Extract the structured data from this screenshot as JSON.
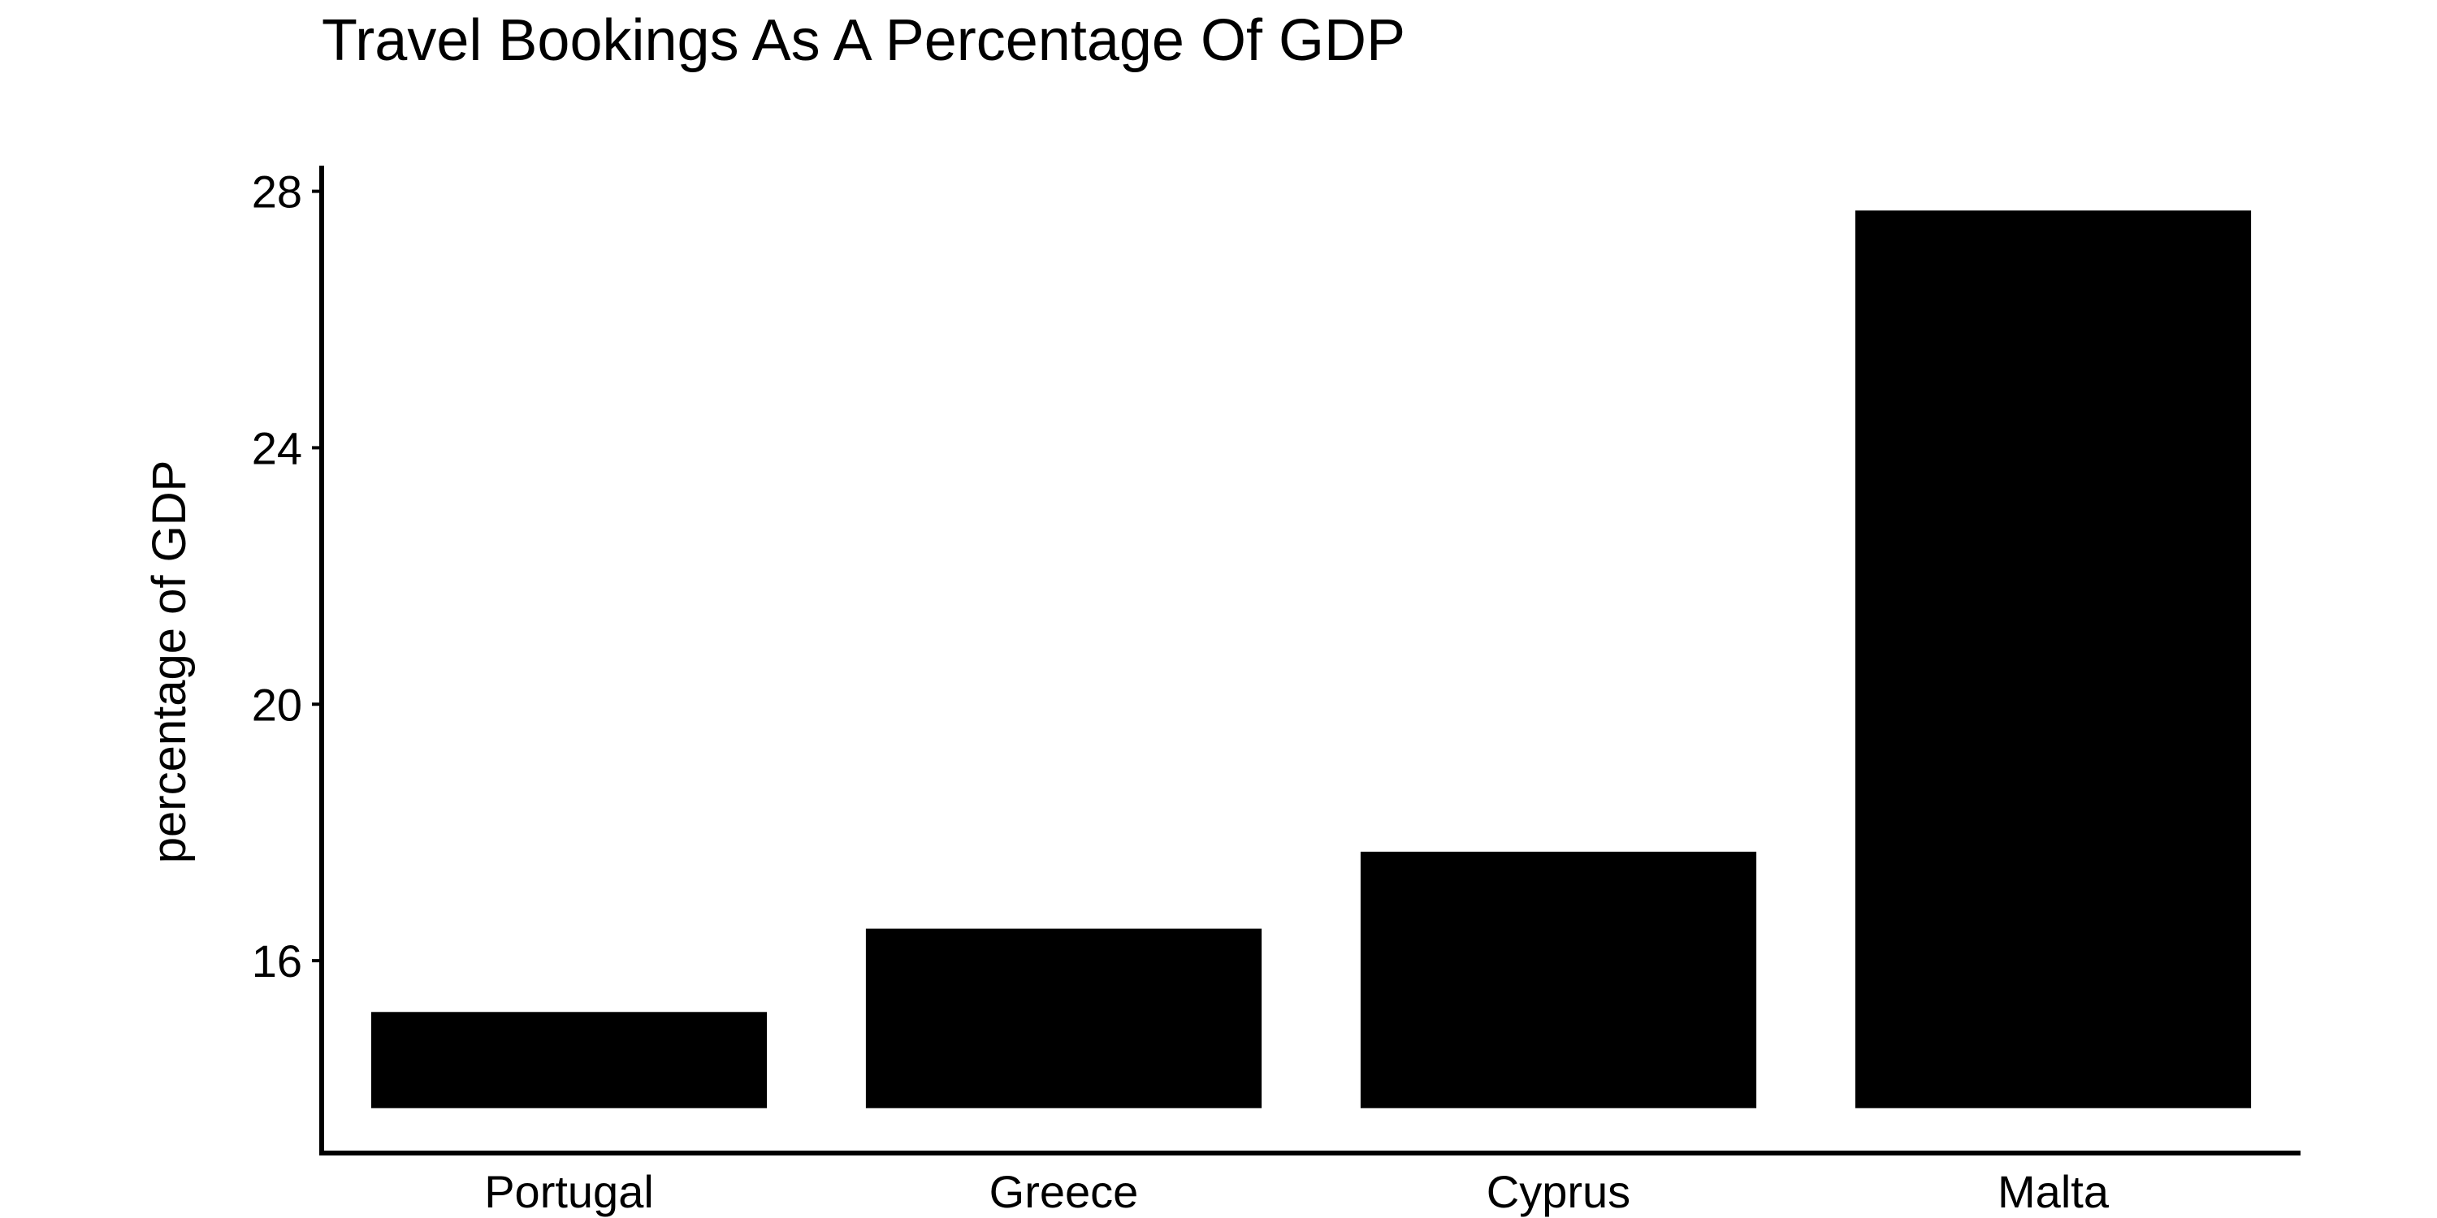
{
  "chart_data": {
    "type": "bar",
    "title": "Travel Bookings As A Percentage Of GDP",
    "xlabel": "",
    "ylabel": "percentage of GDP",
    "categories": [
      "Portugal",
      "Greece",
      "Cyprus",
      "Malta"
    ],
    "values": [
      15.2,
      16.5,
      17.7,
      27.7
    ],
    "baseline": 13.7,
    "ylim": [
      13.0,
      28.4
    ],
    "yticks": [
      16,
      20,
      24,
      28
    ],
    "grid": false,
    "legend": "none",
    "bar_color": "#000000",
    "axis_color": "#000000"
  }
}
